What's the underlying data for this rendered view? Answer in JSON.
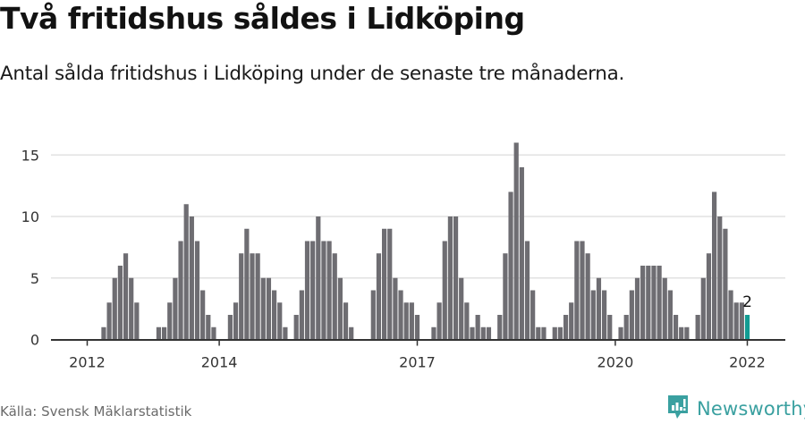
{
  "header": {
    "title": "Två fritidshus såldes i Lidköping",
    "subtitle": "Antal sålda fritidshus i Lidköping under de senaste tre månaderna."
  },
  "footer": {
    "source": "Källa: Svensk Mäklarstatistik",
    "brand": "Newsworthy",
    "brand_icon": "bar-chart-speech-bubble-icon"
  },
  "colors": {
    "bar": "#6e6d72",
    "highlight": "#129c93",
    "grid": "#e2e2e2",
    "axis": "#333333",
    "brand": "#3aa0a0"
  },
  "chart_data": {
    "type": "bar",
    "title": "Två fritidshus såldes i Lidköping",
    "subtitle": "Antal sålda fritidshus i Lidköping under de senaste tre månaderna.",
    "xlabel": "",
    "ylabel": "",
    "ylim": [
      0,
      16
    ],
    "yticks": [
      0,
      5,
      10,
      15
    ],
    "xticks": [
      "2012",
      "2014",
      "2017",
      "2020",
      "2022"
    ],
    "grid": true,
    "legend": "none",
    "highlight": {
      "category": "2022-01",
      "value": 2,
      "label": "2"
    },
    "categories": [
      "2011-07",
      "2011-08",
      "2011-09",
      "2011-10",
      "2011-11",
      "2011-12",
      "2012-01",
      "2012-02",
      "2012-03",
      "2012-04",
      "2012-05",
      "2012-06",
      "2012-07",
      "2012-08",
      "2012-09",
      "2012-10",
      "2012-11",
      "2012-12",
      "2013-01",
      "2013-02",
      "2013-03",
      "2013-04",
      "2013-05",
      "2013-06",
      "2013-07",
      "2013-08",
      "2013-09",
      "2013-10",
      "2013-11",
      "2013-12",
      "2014-01",
      "2014-02",
      "2014-03",
      "2014-04",
      "2014-05",
      "2014-06",
      "2014-07",
      "2014-08",
      "2014-09",
      "2014-10",
      "2014-11",
      "2014-12",
      "2015-01",
      "2015-02",
      "2015-03",
      "2015-04",
      "2015-05",
      "2015-06",
      "2015-07",
      "2015-08",
      "2015-09",
      "2015-10",
      "2015-11",
      "2015-12",
      "2016-01",
      "2016-02",
      "2016-03",
      "2016-04",
      "2016-05",
      "2016-06",
      "2016-07",
      "2016-08",
      "2016-09",
      "2016-10",
      "2016-11",
      "2016-12",
      "2017-01",
      "2017-02",
      "2017-03",
      "2017-04",
      "2017-05",
      "2017-06",
      "2017-07",
      "2017-08",
      "2017-09",
      "2017-10",
      "2017-11",
      "2017-12",
      "2018-01",
      "2018-02",
      "2018-03",
      "2018-04",
      "2018-05",
      "2018-06",
      "2018-07",
      "2018-08",
      "2018-09",
      "2018-10",
      "2018-11",
      "2018-12",
      "2019-01",
      "2019-02",
      "2019-03",
      "2019-04",
      "2019-05",
      "2019-06",
      "2019-07",
      "2019-08",
      "2019-09",
      "2019-10",
      "2019-11",
      "2019-12",
      "2020-01",
      "2020-02",
      "2020-03",
      "2020-04",
      "2020-05",
      "2020-06",
      "2020-07",
      "2020-08",
      "2020-09",
      "2020-10",
      "2020-11",
      "2020-12",
      "2021-01",
      "2021-02",
      "2021-03",
      "2021-04",
      "2021-05",
      "2021-06",
      "2021-07",
      "2021-08",
      "2021-09",
      "2021-10",
      "2021-11",
      "2021-12",
      "2022-01"
    ],
    "values": [
      0,
      0,
      0,
      0,
      0,
      0,
      0,
      0,
      0,
      1,
      3,
      5,
      6,
      7,
      5,
      3,
      0,
      0,
      0,
      1,
      1,
      3,
      5,
      8,
      11,
      10,
      8,
      4,
      2,
      1,
      0,
      0,
      2,
      3,
      7,
      9,
      7,
      7,
      5,
      5,
      4,
      3,
      1,
      0,
      2,
      4,
      8,
      8,
      10,
      8,
      8,
      7,
      5,
      3,
      1,
      0,
      0,
      0,
      4,
      7,
      9,
      9,
      5,
      4,
      3,
      3,
      2,
      0,
      0,
      1,
      3,
      8,
      10,
      10,
      5,
      3,
      1,
      2,
      1,
      1,
      0,
      2,
      7,
      12,
      16,
      14,
      8,
      4,
      1,
      1,
      0,
      1,
      1,
      2,
      3,
      8,
      8,
      7,
      4,
      5,
      4,
      2,
      0,
      1,
      2,
      4,
      5,
      6,
      6,
      6,
      6,
      5,
      4,
      2,
      1,
      1,
      0,
      2,
      5,
      7,
      12,
      10,
      9,
      4,
      3,
      3,
      2
    ]
  }
}
